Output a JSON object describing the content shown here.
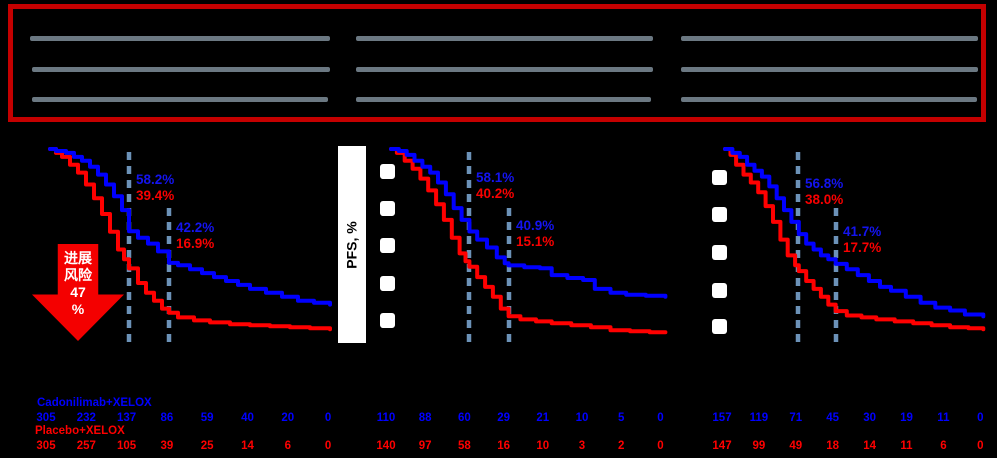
{
  "header_box": {
    "columns": 3,
    "redacted_lines_per_column": 3
  },
  "chart": {
    "y_axis_label": "PFS, %",
    "colors": {
      "arm1_blue": "#0000FF",
      "arm2_red": "#FF0000",
      "dashed_landmark": "#6C92B8",
      "header_border_red": "#C40000",
      "redacted_gray": "#6B7882",
      "arrow_red": "#F40000"
    }
  },
  "arrow": {
    "lines": [
      "进展",
      "风险",
      "47",
      "%"
    ]
  },
  "legend": {
    "arm1": {
      "label": "Cadonilimab+XELOX",
      "color": "#0000FF"
    },
    "arm2": {
      "label": "Placebo+XELOX",
      "color": "#FF0000"
    }
  },
  "chart_data": [
    {
      "type": "line",
      "subtype": "kaplan_meier_step",
      "panel": "left",
      "ylabel": "PFS, %",
      "ylim": [
        0,
        100
      ],
      "x_ticks": 8,
      "grid": false,
      "milestones": [
        {
          "blue_pct": "58.2%",
          "red_pct": "39.4%"
        },
        {
          "blue_pct": "42.2%",
          "red_pct": "16.9%"
        }
      ],
      "series": [
        {
          "name": "Cadonilimab+XELOX",
          "color": "#0000FF",
          "points": [
            [
              0,
              100
            ],
            [
              0.15,
              99
            ],
            [
              0.4,
              98
            ],
            [
              0.6,
              96
            ],
            [
              0.8,
              94
            ],
            [
              1.0,
              91
            ],
            [
              1.2,
              87
            ],
            [
              1.4,
              82
            ],
            [
              1.6,
              76
            ],
            [
              1.8,
              69
            ],
            [
              1.975,
              58.2
            ],
            [
              2.2,
              55
            ],
            [
              2.45,
              52
            ],
            [
              2.7,
              48
            ],
            [
              2.975,
              42.2
            ],
            [
              3.2,
              41
            ],
            [
              3.5,
              39
            ],
            [
              3.8,
              37
            ],
            [
              4.1,
              35
            ],
            [
              4.4,
              33
            ],
            [
              4.7,
              31
            ],
            [
              5.0,
              29
            ],
            [
              5.4,
              27
            ],
            [
              5.8,
              25
            ],
            [
              6.2,
              23
            ],
            [
              6.6,
              22
            ],
            [
              7.0,
              21
            ]
          ]
        },
        {
          "name": "Placebo+XELOX",
          "color": "#FF0000",
          "points": [
            [
              0,
              100
            ],
            [
              0.15,
              98
            ],
            [
              0.3,
              96
            ],
            [
              0.5,
              92
            ],
            [
              0.7,
              88
            ],
            [
              0.9,
              82
            ],
            [
              1.1,
              75
            ],
            [
              1.3,
              67
            ],
            [
              1.5,
              58
            ],
            [
              1.7,
              49
            ],
            [
              1.85,
              44
            ],
            [
              1.975,
              39.4
            ],
            [
              2.2,
              32
            ],
            [
              2.4,
              27
            ],
            [
              2.6,
              23
            ],
            [
              2.8,
              19
            ],
            [
              2.975,
              16.9
            ],
            [
              3.2,
              14.5
            ],
            [
              3.6,
              13
            ],
            [
              4.0,
              12
            ],
            [
              4.5,
              11
            ],
            [
              5.0,
              10.5
            ],
            [
              5.5,
              10
            ],
            [
              6.0,
              9.5
            ],
            [
              6.5,
              9
            ],
            [
              7.0,
              8.5
            ]
          ]
        }
      ],
      "at_risk": {
        "cadonilimab_xelox": [
          305,
          232,
          137,
          86,
          59,
          40,
          20,
          0
        ],
        "placebo_xelox": [
          305,
          257,
          105,
          39,
          25,
          14,
          6,
          0
        ]
      }
    },
    {
      "type": "line",
      "subtype": "kaplan_meier_step",
      "panel": "middle",
      "ylabel": "PFS, %",
      "ylim": [
        0,
        100
      ],
      "x_ticks": 8,
      "grid": false,
      "milestones": [
        {
          "blue_pct": "58.1%",
          "red_pct": "40.2%"
        },
        {
          "blue_pct": "40.9%",
          "red_pct": "15.1%"
        }
      ],
      "series": [
        {
          "name": "Cadonilimab+XELOX",
          "color": "#0000FF",
          "points": [
            [
              0,
              100
            ],
            [
              0.2,
              99
            ],
            [
              0.4,
              97
            ],
            [
              0.6,
              94
            ],
            [
              0.8,
              91
            ],
            [
              1.0,
              88
            ],
            [
              1.2,
              83
            ],
            [
              1.4,
              77
            ],
            [
              1.6,
              70
            ],
            [
              1.8,
              64
            ],
            [
              2.0,
              58.1
            ],
            [
              2.2,
              54
            ],
            [
              2.45,
              50
            ],
            [
              2.7,
              45
            ],
            [
              2.9,
              42
            ],
            [
              3.0,
              40.9
            ],
            [
              3.4,
              40
            ],
            [
              3.8,
              39.5
            ],
            [
              4.1,
              36
            ],
            [
              4.5,
              34.5
            ],
            [
              4.9,
              33.5
            ],
            [
              5.2,
              29
            ],
            [
              5.6,
              27
            ],
            [
              6.0,
              26
            ],
            [
              6.5,
              25.5
            ],
            [
              7.0,
              25
            ]
          ]
        },
        {
          "name": "Placebo+XELOX",
          "color": "#FF0000",
          "points": [
            [
              0,
              100
            ],
            [
              0.15,
              98
            ],
            [
              0.35,
              94
            ],
            [
              0.55,
              90
            ],
            [
              0.75,
              85
            ],
            [
              0.95,
              79
            ],
            [
              1.15,
              72
            ],
            [
              1.35,
              64
            ],
            [
              1.55,
              55
            ],
            [
              1.75,
              47
            ],
            [
              1.9,
              43
            ],
            [
              2.0,
              40.2
            ],
            [
              2.2,
              35
            ],
            [
              2.4,
              30
            ],
            [
              2.6,
              25
            ],
            [
              2.8,
              19
            ],
            [
              3.0,
              15.1
            ],
            [
              3.3,
              13.5
            ],
            [
              3.7,
              12.5
            ],
            [
              4.1,
              11.5
            ],
            [
              4.6,
              10.5
            ],
            [
              5.1,
              9.5
            ],
            [
              5.6,
              8
            ],
            [
              6.1,
              7.5
            ],
            [
              6.6,
              7
            ],
            [
              7.0,
              7
            ]
          ]
        }
      ],
      "at_risk": {
        "cadonilimab_xelox": [
          110,
          88,
          60,
          29,
          21,
          10,
          5,
          0
        ],
        "placebo_xelox": [
          140,
          97,
          58,
          16,
          10,
          3,
          2,
          0
        ]
      }
    },
    {
      "type": "line",
      "subtype": "kaplan_meier_step",
      "panel": "right",
      "ylabel": "PFS, %",
      "ylim": [
        0,
        100
      ],
      "x_ticks": 8,
      "grid": false,
      "milestones": [
        {
          "blue_pct": "56.8%",
          "red_pct": "38.0%"
        },
        {
          "blue_pct": "41.7%",
          "red_pct": "17.7%"
        }
      ],
      "series": [
        {
          "name": "Cadonilimab+XELOX",
          "color": "#0000FF",
          "points": [
            [
              0,
              100
            ],
            [
              0.2,
              98
            ],
            [
              0.4,
              96
            ],
            [
              0.6,
              92
            ],
            [
              0.8,
              89
            ],
            [
              1.0,
              86
            ],
            [
              1.2,
              81
            ],
            [
              1.4,
              75
            ],
            [
              1.6,
              69
            ],
            [
              1.8,
              63
            ],
            [
              2.0,
              56.8
            ],
            [
              2.2,
              52
            ],
            [
              2.4,
              49
            ],
            [
              2.6,
              46
            ],
            [
              2.8,
              44
            ],
            [
              3.0,
              41.7
            ],
            [
              3.3,
              39
            ],
            [
              3.6,
              36
            ],
            [
              3.9,
              33
            ],
            [
              4.2,
              30
            ],
            [
              4.5,
              28
            ],
            [
              4.9,
              25
            ],
            [
              5.3,
              22
            ],
            [
              5.7,
              19.5
            ],
            [
              6.1,
              18
            ],
            [
              6.5,
              16
            ],
            [
              7.0,
              15
            ]
          ]
        },
        {
          "name": "Placebo+XELOX",
          "color": "#FF0000",
          "points": [
            [
              0,
              100
            ],
            [
              0.15,
              97
            ],
            [
              0.3,
              92
            ],
            [
              0.5,
              87
            ],
            [
              0.7,
              83
            ],
            [
              0.9,
              78
            ],
            [
              1.1,
              71
            ],
            [
              1.3,
              63
            ],
            [
              1.5,
              54
            ],
            [
              1.7,
              46
            ],
            [
              1.9,
              41
            ],
            [
              2.0,
              38
            ],
            [
              2.2,
              33
            ],
            [
              2.4,
              29
            ],
            [
              2.6,
              25
            ],
            [
              2.8,
              21
            ],
            [
              3.0,
              17.7
            ],
            [
              3.3,
              15.5
            ],
            [
              3.7,
              14.5
            ],
            [
              4.1,
              13.5
            ],
            [
              4.6,
              12.5
            ],
            [
              5.1,
              11.5
            ],
            [
              5.6,
              10.5
            ],
            [
              6.1,
              9.5
            ],
            [
              6.6,
              9
            ],
            [
              7.0,
              8.5
            ]
          ]
        }
      ],
      "at_risk": {
        "cadonilimab_xelox": [
          157,
          119,
          71,
          45,
          30,
          19,
          11,
          0
        ],
        "placebo_xelox": [
          147,
          99,
          49,
          18,
          14,
          11,
          6,
          0
        ]
      }
    }
  ]
}
